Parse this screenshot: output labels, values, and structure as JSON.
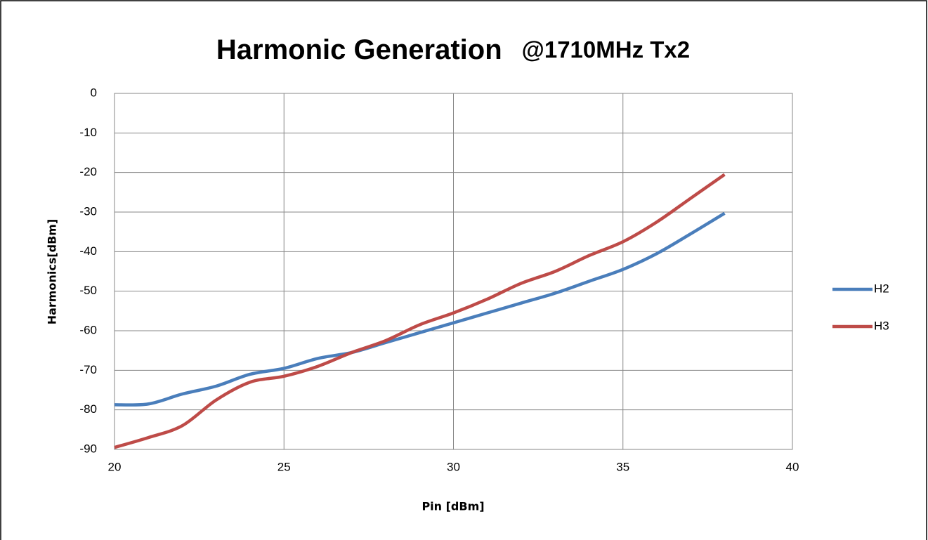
{
  "chart_data": {
    "type": "line",
    "title": "Harmonic Generation",
    "subtitle": "@1710MHz Tx2",
    "x_label": "Pin [dBm]",
    "y_label": "Harmonics[dBm]",
    "x": [
      20,
      21,
      22,
      23,
      24,
      25,
      26,
      27,
      28,
      29,
      30,
      31,
      32,
      33,
      34,
      35,
      36,
      37,
      38
    ],
    "series": [
      {
        "name": "H2",
        "color": "#4a7ebb",
        "values": [
          -78.7,
          -78.5,
          -76,
          -74,
          -71,
          -69.5,
          -67,
          -65.5,
          -63,
          -60.5,
          -58,
          -55.5,
          -53,
          -50.5,
          -47.5,
          -44.5,
          -40.5,
          -35.5,
          -30.3
        ]
      },
      {
        "name": "H3",
        "color": "#be4b48",
        "values": [
          -89.5,
          -87,
          -84,
          -77.5,
          -73,
          -71.5,
          -69,
          -65.5,
          -62.5,
          -58.5,
          -55.5,
          -52,
          -48,
          -45,
          -41,
          -37.5,
          -32.5,
          -26.5,
          -20.5
        ]
      }
    ],
    "xlim": [
      20,
      40
    ],
    "xticks": [
      20,
      25,
      30,
      35,
      40
    ],
    "ylim": [
      -90,
      0
    ],
    "yticks": [
      0,
      -10,
      -20,
      -30,
      -40,
      -50,
      -60,
      -70,
      -80,
      -90
    ],
    "grid": true,
    "legend": "right"
  }
}
